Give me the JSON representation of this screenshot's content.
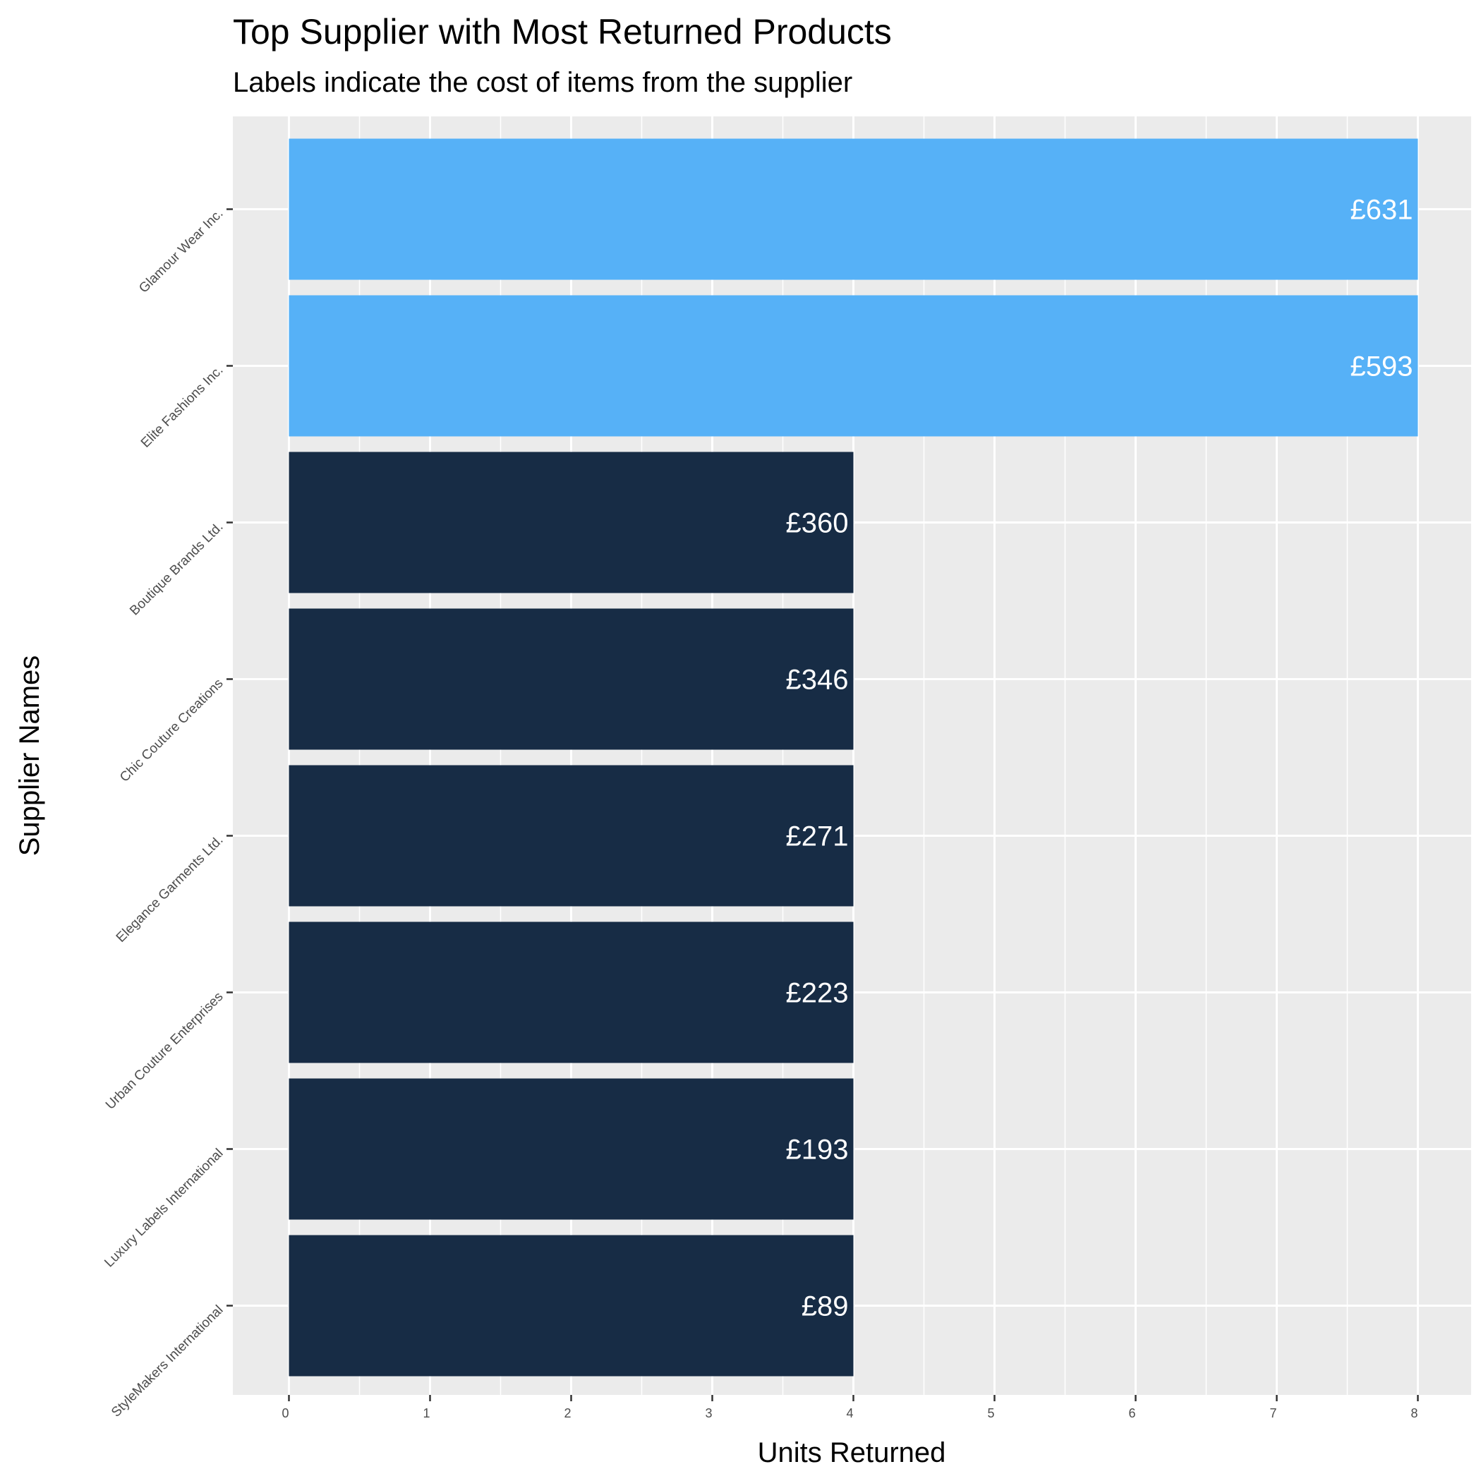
{
  "colors": {
    "panel_background": "#ebebeb",
    "grid_line": "#ffffff",
    "highlight_bar": "#56b1f7",
    "default_bar": "#172c45",
    "bar_label": "#ffffff"
  },
  "chart_data": {
    "type": "bar",
    "orientation": "horizontal",
    "title": "Top Supplier with Most Returned Products",
    "subtitle": "Labels indicate the cost of items from the supplier",
    "xlabel": "Units Returned",
    "ylabel": "Supplier Names",
    "xlim": [
      0,
      8
    ],
    "x_ticks": [
      "0",
      "1",
      "2",
      "3",
      "4",
      "5",
      "6",
      "7",
      "8"
    ],
    "grid": true,
    "legend": "none",
    "categories": [
      "Glamour Wear Inc.",
      "Elite Fashions Inc.",
      "Boutique Brands Ltd.",
      "Chic Couture Creations",
      "Elegance Garments Ltd.",
      "Urban Couture Enterprises",
      "Luxury Labels International",
      "StyleMakers International"
    ],
    "values": [
      8,
      8,
      4,
      4,
      4,
      4,
      4,
      4
    ],
    "labels": [
      "£631",
      "£593",
      "£360",
      "£346",
      "£271",
      "£223",
      "£193",
      "£89"
    ],
    "highlighted": [
      true,
      true,
      false,
      false,
      false,
      false,
      false,
      false
    ]
  }
}
